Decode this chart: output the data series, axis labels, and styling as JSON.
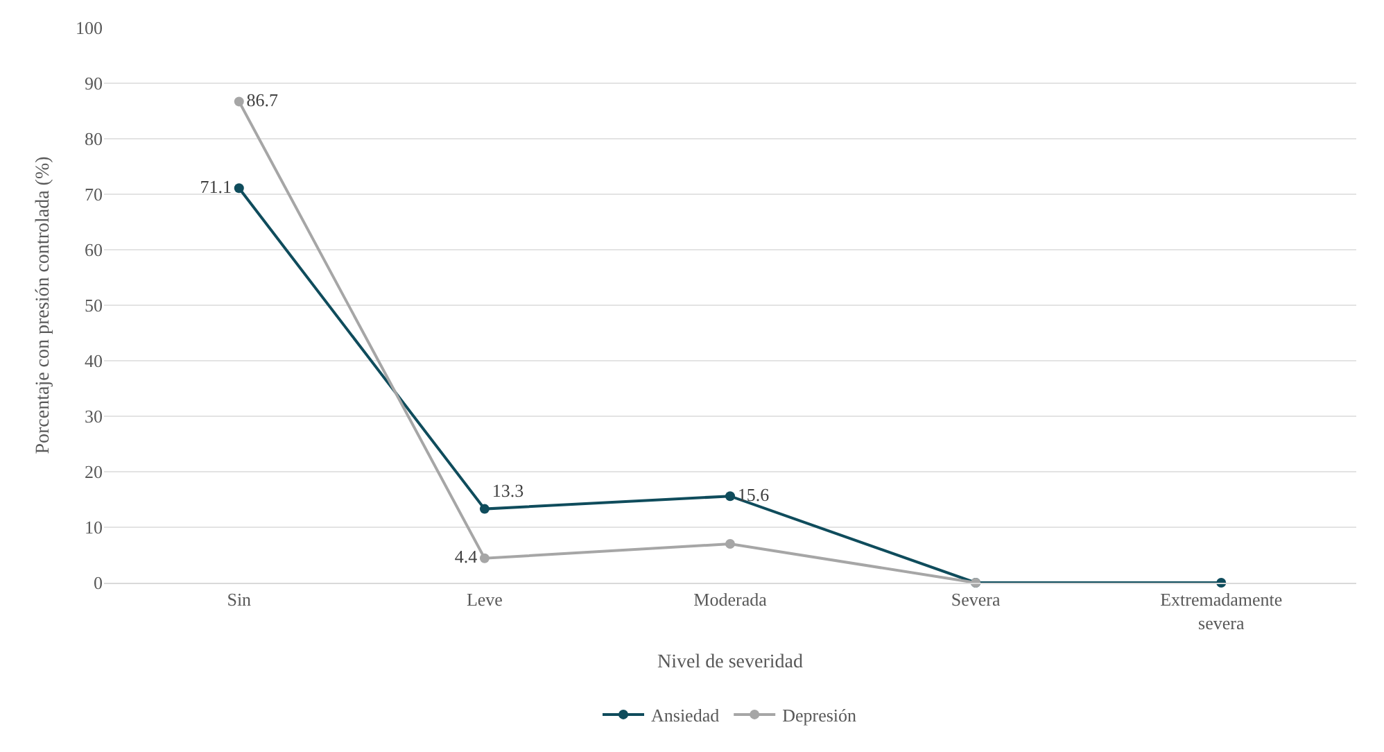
{
  "chart_data": {
    "type": "line",
    "xlabel": "Nivel de severidad",
    "ylabel": "Porcentaje con presión controlada (%)",
    "categories": [
      "Sin",
      "Leve",
      "Moderada",
      "Severa",
      "Extremadamente severa"
    ],
    "series": [
      {
        "name": "Ansiedad",
        "color": "#0f4c5c",
        "values": [
          71.1,
          13.3,
          15.6,
          0,
          0
        ],
        "value_labels": [
          "71.1",
          "13.3",
          "15.6",
          null,
          null
        ]
      },
      {
        "name": "Depresión",
        "color": "#a6a6a6",
        "values": [
          86.7,
          4.4,
          7,
          0,
          null
        ],
        "value_labels": [
          "86.7",
          "4.4",
          null,
          null,
          null
        ]
      }
    ],
    "ylim": [
      0,
      100
    ],
    "yticks": [
      0,
      10,
      20,
      30,
      40,
      50,
      60,
      70,
      80,
      90,
      100
    ],
    "grid": "y",
    "legend": "bottom",
    "marker": "circle",
    "line_style": "solid"
  }
}
